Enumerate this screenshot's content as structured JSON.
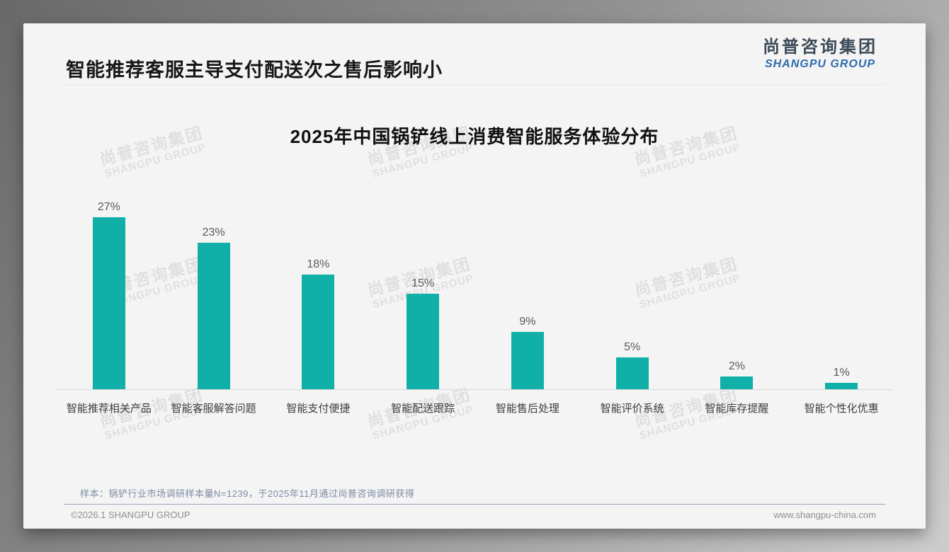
{
  "page": {
    "title": "智能推荐客服主导支付配送次之售后影响小",
    "logo": {
      "cn": "尚普咨询集团",
      "en": "SHANGPU GROUP"
    },
    "watermark": {
      "line1": "尚普咨询集团",
      "line2": "SHANGPU GROUP"
    },
    "footnote": "样本：锅铲行业市场调研样本量N=1239，于2025年11月通过尚普咨询调研获得",
    "footer": {
      "left": "©2026.1 SHANGPU GROUP",
      "right": "www.shangpu-china.com"
    }
  },
  "chart_data": {
    "type": "bar",
    "title": "2025年中国锅铲线上消费智能服务体验分布",
    "categories": [
      "智能推荐相关产品",
      "智能客服解答问题",
      "智能支付便捷",
      "智能配送跟踪",
      "智能售后处理",
      "智能评价系统",
      "智能库存提醒",
      "智能个性化优惠"
    ],
    "values": [
      27,
      23,
      18,
      15,
      9,
      5,
      2,
      1
    ],
    "labels": [
      "27%",
      "23%",
      "18%",
      "15%",
      "9%",
      "5%",
      "2%",
      "1%"
    ],
    "unit": "%",
    "ylim": [
      0,
      30
    ],
    "bar_color": "#10b0a8",
    "grid": false,
    "legend": false,
    "value_labels_position": "above-bars",
    "axis_line_color": "#d8d8d8"
  }
}
